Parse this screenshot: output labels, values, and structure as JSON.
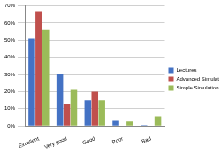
{
  "chart_data": {
    "type": "bar",
    "categories": [
      "Excellent",
      "Very good",
      "Good",
      "Poor",
      "Bad"
    ],
    "series": [
      {
        "name": "Lectures",
        "color": "#4472c4",
        "values": [
          51,
          30,
          15,
          3,
          0.5
        ]
      },
      {
        "name": "Advanced Simulation Session",
        "color": "#c0504d",
        "values": [
          67,
          13,
          20,
          0,
          0
        ]
      },
      {
        "name": "Simple Simulation Session",
        "color": "#9bbb59",
        "values": [
          56,
          21,
          15,
          2.5,
          5.5
        ]
      }
    ],
    "ylim": [
      0,
      70
    ],
    "yticks": [
      {
        "value": 0,
        "label": "0%"
      },
      {
        "value": 10,
        "label": "10%"
      },
      {
        "value": 20,
        "label": "20%"
      },
      {
        "value": 30,
        "label": "30%"
      },
      {
        "value": 40,
        "label": "40%"
      },
      {
        "value": 50,
        "label": "50%"
      },
      {
        "value": 60,
        "label": "60%"
      },
      {
        "value": 70,
        "label": "70%"
      }
    ],
    "grid": true,
    "legend": "right"
  }
}
